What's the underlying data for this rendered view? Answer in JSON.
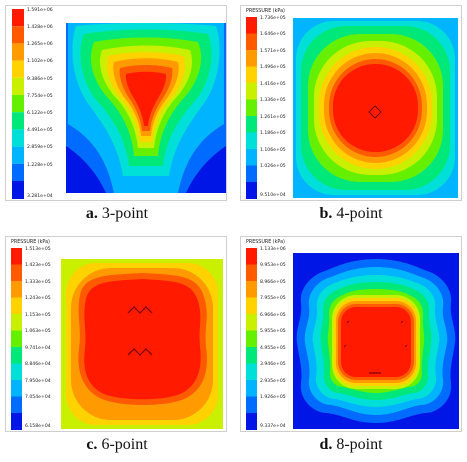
{
  "figure": {
    "panels": [
      {
        "id": "a",
        "caption_letter": "a.",
        "caption_text": "3-point",
        "colorbar_title": "",
        "ticks": [
          "1.591e+06",
          "1.428e+06",
          "1.265e+06",
          "1.102e+06",
          "9.386e+05",
          "7.754e+05",
          "6.122e+05",
          "4.491e+05",
          "2.859e+05",
          "1.228e+05",
          "3.281e+04"
        ]
      },
      {
        "id": "b",
        "caption_letter": "b.",
        "caption_text": "4-point",
        "colorbar_title": "PRESSURE (kPa)",
        "ticks": [
          "1.736e+05",
          "1.646e+05",
          "1.571e+05",
          "1.496e+05",
          "1.416e+05",
          "1.336e+05",
          "1.261e+05",
          "1.186e+05",
          "1.106e+05",
          "1.026e+05",
          "9.510e+04"
        ]
      },
      {
        "id": "c",
        "caption_letter": "c.",
        "caption_text": "6-point",
        "colorbar_title": "PRESSURE (kPa)",
        "ticks": [
          "1.513e+05",
          "1.423e+05",
          "1.333e+05",
          "1.243e+05",
          "1.153e+05",
          "1.063e+05",
          "9.741e+04",
          "8.846e+04",
          "7.950e+04",
          "7.054e+04",
          "6.158e+04"
        ]
      },
      {
        "id": "d",
        "caption_letter": "d.",
        "caption_text": "8-point",
        "colorbar_title": "PRESSURE (kPa)",
        "ticks": [
          "1.133e+06",
          "9.953e+05",
          "8.966e+05",
          "7.955e+05",
          "6.966e+05",
          "5.955e+05",
          "4.955e+05",
          "3.946e+05",
          "2.935e+05",
          "1.926e+05",
          "9.337e+04"
        ]
      }
    ],
    "colors": [
      "#ff1a00",
      "#ff5a00",
      "#ff9a00",
      "#ffd200",
      "#c8f000",
      "#64f000",
      "#00e87a",
      "#00e0d8",
      "#00b4ff",
      "#006cff",
      "#0016e6"
    ]
  }
}
